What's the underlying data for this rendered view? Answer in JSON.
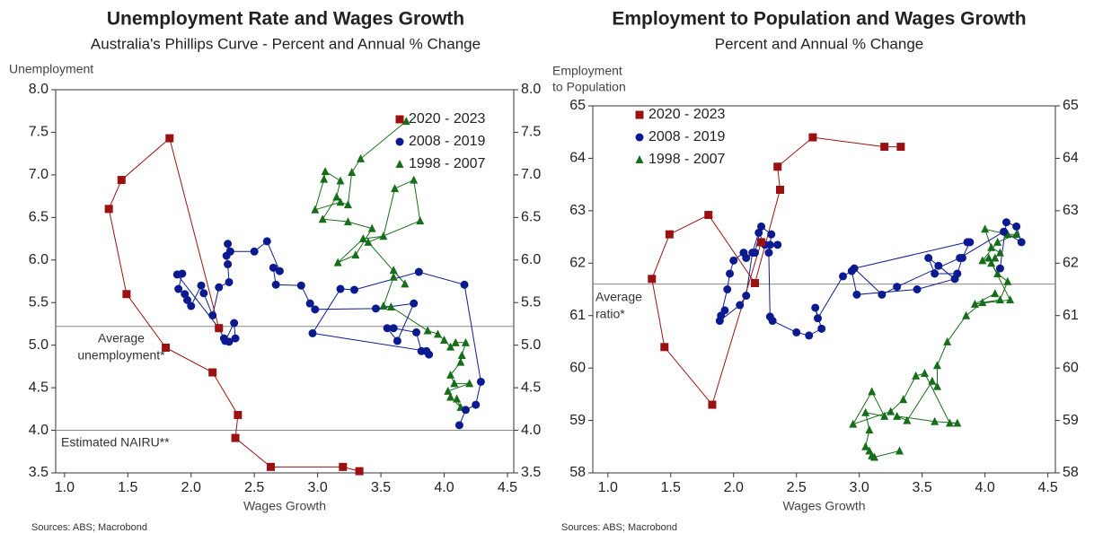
{
  "chart_data": [
    {
      "type": "scatter",
      "title": "Unemployment Rate and Wages Growth",
      "subtitle": "Australia's Phillips Curve - Percent and Annual % Change",
      "ylabel": [
        "Unemployment"
      ],
      "xlabel": "Wages Growth",
      "source": "Sources: ABS; Macrobond",
      "xlim": [
        0.93,
        4.55
      ],
      "ylim": [
        3.5,
        8.0
      ],
      "xticks": [
        {
          "value": 1,
          "label": "1.0"
        },
        1.5,
        {
          "value": 2,
          "label": "2.0"
        },
        2.5,
        {
          "value": 3,
          "label": "3.0"
        },
        3.5,
        {
          "value": 4,
          "label": "4.0"
        },
        4.5
      ],
      "yticks": [
        3.5,
        {
          "value": 4,
          "label": "4.0"
        },
        4.5,
        {
          "value": 5,
          "label": "5.0"
        },
        5.5,
        {
          "value": 6,
          "label": "6.0"
        },
        6.5,
        {
          "value": 7,
          "label": "7.0"
        },
        7.5,
        {
          "value": 8,
          "label": "8.0"
        }
      ],
      "legend": "upper right",
      "hlines": [
        {
          "value": 5.22,
          "label": [
            "Average",
            "unemployment*"
          ]
        },
        {
          "value": 4.0,
          "label": [
            "Estimated NAIRU**"
          ]
        }
      ],
      "series": [
        {
          "name": "2020 - 2023",
          "color": "#9b1111",
          "marker": "square",
          "x": [
            2.22,
            1.83,
            1.45,
            1.35,
            1.49,
            1.8,
            2.17,
            2.37,
            2.35,
            2.63,
            3.2,
            3.33
          ],
          "values": [
            5.2,
            7.43,
            6.94,
            6.6,
            5.6,
            4.97,
            4.68,
            4.18,
            3.91,
            3.57,
            3.57,
            3.52
          ]
        },
        {
          "name": "2008 - 2019",
          "color": "#0c1a8f",
          "marker": "circle",
          "x": [
            4.12,
            4.17,
            4.25,
            4.29,
            4.16,
            3.8,
            3.29,
            3.18,
            2.96,
            3.86,
            3.88,
            3.82,
            3.78,
            3.6,
            3.55,
            3.63,
            3.76,
            3.46,
            2.98,
            2.94,
            2.87,
            2.67,
            2.65,
            2.7,
            2.6,
            2.5,
            2.31,
            2.29,
            2.28,
            2.29,
            2.3,
            2.22,
            2.17,
            2.1,
            2.08,
            2.0,
            1.97,
            1.95,
            1.9,
            1.93,
            1.89,
            2.22,
            2.26,
            2.3,
            2.27,
            2.34,
            2.35
          ],
          "values": [
            4.06,
            4.24,
            4.3,
            4.57,
            5.71,
            5.86,
            5.65,
            5.66,
            5.14,
            4.93,
            4.89,
            4.93,
            5.15,
            5.2,
            5.2,
            5.05,
            5.49,
            5.43,
            5.42,
            5.49,
            5.7,
            5.71,
            5.91,
            5.87,
            6.22,
            6.1,
            6.1,
            6.19,
            6.05,
            5.95,
            5.74,
            5.68,
            5.35,
            5.61,
            5.7,
            5.46,
            5.53,
            5.6,
            5.66,
            5.84,
            5.83,
            5.2,
            5.08,
            5.04,
            5.05,
            5.26,
            5.08
          ]
        },
        {
          "name": "1998 - 2007",
          "color": "#176e1a",
          "marker": "triangle",
          "x": [
            3.7,
            3.34,
            3.27,
            3.24,
            3.18,
            2.98,
            3.05,
            3.06,
            3.18,
            3.15,
            3.04,
            3.24,
            3.43,
            3.3,
            3.16,
            3.36,
            3.52,
            3.61,
            3.76,
            3.81,
            3.4,
            3.69,
            3.6,
            3.6,
            3.52,
            3.58,
            3.87,
            3.95,
            4.0,
            4.05,
            4.09,
            4.17,
            4.14,
            4.13,
            4.05,
            4.08,
            4.2,
            4.03,
            4.05,
            4.13,
            4.1
          ],
          "values": [
            7.63,
            7.19,
            7.03,
            6.65,
            6.68,
            6.59,
            6.95,
            7.04,
            6.93,
            6.74,
            6.48,
            6.45,
            6.37,
            6.06,
            5.97,
            6.25,
            6.28,
            6.84,
            6.94,
            6.46,
            6.21,
            5.72,
            5.88,
            5.8,
            5.46,
            5.45,
            5.17,
            5.13,
            5.06,
            4.98,
            5.03,
            5.03,
            4.88,
            4.8,
            4.65,
            4.55,
            4.55,
            4.46,
            4.39,
            4.27,
            4.37
          ]
        }
      ]
    },
    {
      "type": "scatter",
      "title": "Employment to Population and Wages Growth",
      "subtitle": "Percent and Annual % Change",
      "ylabel": [
        "Employment",
        "to Population"
      ],
      "xlabel": "Wages Growth",
      "source": "Sources: ABS; Macrobond",
      "xlim": [
        0.88,
        4.56
      ],
      "ylim": [
        58,
        65
      ],
      "xticks": [
        {
          "value": 1,
          "label": "1.0"
        },
        1.5,
        {
          "value": 2,
          "label": "2.0"
        },
        2.5,
        {
          "value": 3,
          "label": "3.0"
        },
        3.5,
        {
          "value": 4,
          "label": "4.0"
        },
        4.5
      ],
      "yticks": [
        58,
        59,
        60,
        61,
        62,
        63,
        64,
        65
      ],
      "legend": "upper left",
      "hlines": [
        {
          "value": 61.6,
          "label": [
            "Average",
            "ratio*"
          ]
        }
      ],
      "series": [
        {
          "name": "2020 - 2023",
          "color": "#9b1111",
          "marker": "square",
          "x": [
            2.22,
            1.83,
            1.45,
            1.35,
            1.49,
            1.8,
            2.17,
            2.37,
            2.35,
            2.63,
            3.2,
            3.33
          ],
          "values": [
            62.4,
            59.3,
            60.4,
            61.7,
            62.55,
            62.92,
            61.62,
            63.4,
            63.84,
            64.4,
            64.22,
            64.22
          ]
        },
        {
          "name": "2008 - 2019",
          "color": "#0c1a8f",
          "marker": "circle",
          "x": [
            4.12,
            4.17,
            4.25,
            4.29,
            4.15,
            3.8,
            3.3,
            3.18,
            2.96,
            3.86,
            3.88,
            3.82,
            3.78,
            3.6,
            3.55,
            3.63,
            3.76,
            3.46,
            2.98,
            2.94,
            2.87,
            2.67,
            2.65,
            2.7,
            2.6,
            2.5,
            2.31,
            2.29,
            2.28,
            2.29,
            2.3,
            2.22,
            2.17,
            2.1,
            2.08,
            2.0,
            1.97,
            1.95,
            1.9,
            1.93,
            1.89,
            2.05,
            2.1,
            2.15,
            2.2,
            2.25,
            2.35
          ],
          "values": [
            61.9,
            62.78,
            62.7,
            62.4,
            62.6,
            62.1,
            61.55,
            61.4,
            61.9,
            62.4,
            62.4,
            62.1,
            61.8,
            61.8,
            62.1,
            61.95,
            61.7,
            61.5,
            61.4,
            61.85,
            61.75,
            60.95,
            61.15,
            60.75,
            60.62,
            60.68,
            60.9,
            60.98,
            62.2,
            62.35,
            62.55,
            62.7,
            62.2,
            62.1,
            62.2,
            62.05,
            61.8,
            61.5,
            61.0,
            61.1,
            60.9,
            61.2,
            61.38,
            62.2,
            62.58,
            62.35,
            62.35
          ]
        },
        {
          "name": "1998 - 2007",
          "color": "#176e1a",
          "marker": "triangle",
          "x": [
            3.32,
            3.12,
            3.1,
            3.08,
            3.05,
            3.08,
            3.05,
            3.2,
            3.1,
            2.95,
            3.25,
            3.35,
            3.45,
            3.52,
            3.72,
            3.78,
            3.6,
            3.3,
            3.38,
            3.58,
            3.62,
            3.62,
            3.7,
            3.85,
            3.98,
            4.12,
            4.18,
            4.1,
            4.05,
            4.08,
            4.12,
            4.05,
            4.0,
            4.18,
            4.25,
            4.1,
            3.98,
            4.03,
            4.2,
            3.92,
            4.08
          ],
          "values": [
            58.42,
            58.3,
            58.33,
            58.42,
            58.5,
            58.82,
            59.15,
            59.08,
            59.55,
            58.93,
            59.17,
            59.4,
            59.85,
            59.9,
            58.95,
            58.95,
            58.98,
            59.08,
            59.0,
            59.75,
            59.65,
            60.05,
            60.5,
            61.0,
            61.25,
            61.3,
            61.65,
            61.8,
            62.0,
            62.1,
            62.2,
            62.3,
            62.65,
            62.55,
            62.55,
            62.4,
            62.05,
            62.1,
            61.3,
            61.22,
            61.42
          ]
        }
      ]
    }
  ]
}
